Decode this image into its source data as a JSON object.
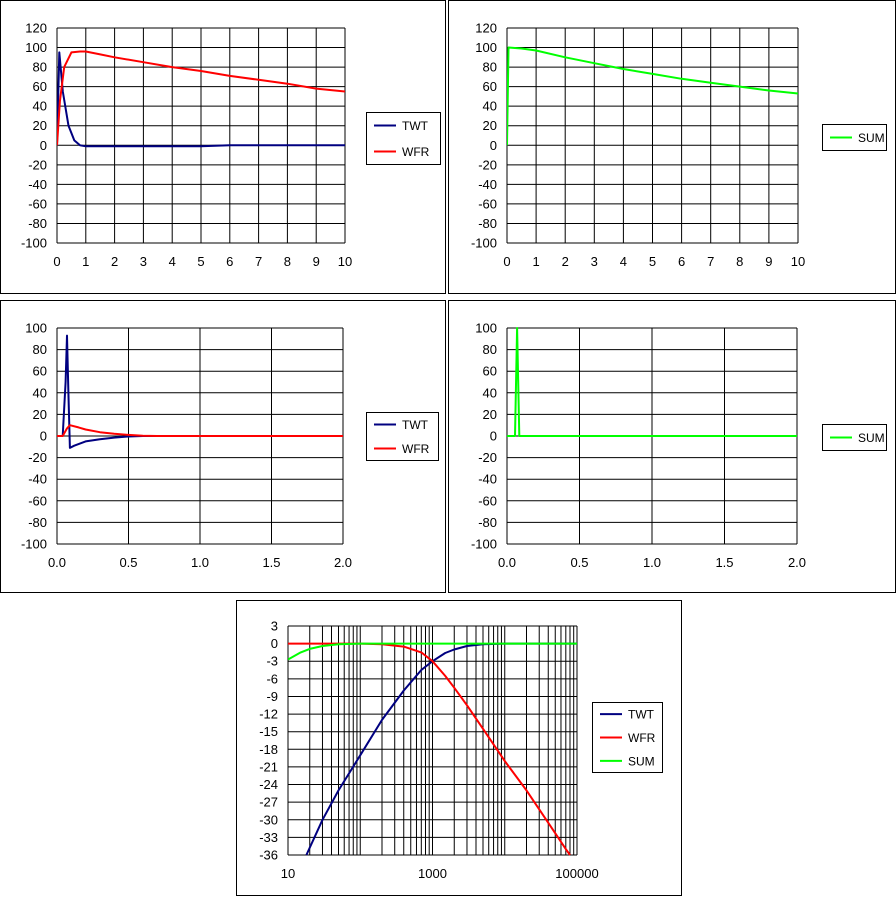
{
  "chart_data": [
    {
      "id": "c1",
      "type": "line",
      "title": "",
      "xlabel": "",
      "ylabel": "",
      "xlim": [
        0,
        10
      ],
      "ylim": [
        -100,
        120
      ],
      "x_ticks": [
        0,
        1,
        2,
        3,
        4,
        5,
        6,
        7,
        8,
        9,
        10
      ],
      "x_tick_labels": [
        "0",
        "1",
        "2",
        "3",
        "4",
        "5",
        "6",
        "7",
        "8",
        "9",
        "10"
      ],
      "y_ticks": [
        -100,
        -80,
        -60,
        -40,
        -20,
        0,
        20,
        40,
        60,
        80,
        100,
        120
      ],
      "y_tick_labels": [
        "-100",
        "-80",
        "-60",
        "-40",
        "-20",
        "0",
        "20",
        "40",
        "60",
        "80",
        "100",
        "120"
      ],
      "grid": true,
      "legend": "right",
      "series": [
        {
          "name": "TWT",
          "color": "#000080",
          "points": [
            [
              0,
              0
            ],
            [
              0.08,
              95
            ],
            [
              0.2,
              55
            ],
            [
              0.4,
              20
            ],
            [
              0.6,
              5
            ],
            [
              0.8,
              0
            ],
            [
              1.0,
              -1
            ],
            [
              2.0,
              -1
            ],
            [
              3.0,
              -1
            ],
            [
              4.0,
              -1
            ],
            [
              5.0,
              -1
            ],
            [
              6.0,
              0
            ],
            [
              10,
              0
            ]
          ]
        },
        {
          "name": "WFR",
          "color": "#ff0000",
          "points": [
            [
              0,
              0
            ],
            [
              0.1,
              45
            ],
            [
              0.25,
              80
            ],
            [
              0.5,
              95
            ],
            [
              0.8,
              96
            ],
            [
              1.0,
              96
            ],
            [
              1.5,
              93
            ],
            [
              2,
              90
            ],
            [
              3,
              85
            ],
            [
              4,
              80
            ],
            [
              5,
              76
            ],
            [
              6,
              71
            ],
            [
              7,
              67
            ],
            [
              8,
              63
            ],
            [
              9,
              58
            ],
            [
              10,
              55
            ]
          ]
        }
      ]
    },
    {
      "id": "c2",
      "type": "line",
      "title": "",
      "xlabel": "",
      "ylabel": "",
      "xlim": [
        0,
        10
      ],
      "ylim": [
        -100,
        120
      ],
      "x_ticks": [
        0,
        1,
        2,
        3,
        4,
        5,
        6,
        7,
        8,
        9,
        10
      ],
      "x_tick_labels": [
        "0",
        "1",
        "2",
        "3",
        "4",
        "5",
        "6",
        "7",
        "8",
        "9",
        "10"
      ],
      "y_ticks": [
        -100,
        -80,
        -60,
        -40,
        -20,
        0,
        20,
        40,
        60,
        80,
        100,
        120
      ],
      "y_tick_labels": [
        "-100",
        "-80",
        "-60",
        "-40",
        "-20",
        "0",
        "20",
        "40",
        "60",
        "80",
        "100",
        "120"
      ],
      "grid": true,
      "legend": "right",
      "series": [
        {
          "name": "SUM",
          "color": "#00ff00",
          "points": [
            [
              0,
              0
            ],
            [
              0.05,
              100
            ],
            [
              0.5,
              99
            ],
            [
              1,
              97
            ],
            [
              2,
              90
            ],
            [
              3,
              84
            ],
            [
              4,
              78
            ],
            [
              5,
              73
            ],
            [
              6,
              68
            ],
            [
              7,
              64
            ],
            [
              8,
              60
            ],
            [
              9,
              56
            ],
            [
              10,
              53
            ]
          ]
        }
      ]
    },
    {
      "id": "c3",
      "type": "line",
      "title": "",
      "xlabel": "",
      "ylabel": "",
      "xlim": [
        0,
        2
      ],
      "ylim": [
        -100,
        100
      ],
      "x_ticks": [
        0,
        0.5,
        1.0,
        1.5,
        2.0
      ],
      "x_tick_labels": [
        "0.0",
        "0.5",
        "1.0",
        "1.5",
        "2.0"
      ],
      "y_ticks": [
        -100,
        -80,
        -60,
        -40,
        -20,
        0,
        20,
        40,
        60,
        80,
        100
      ],
      "y_tick_labels": [
        "-100",
        "-80",
        "-60",
        "-40",
        "-20",
        "0",
        "20",
        "40",
        "60",
        "80",
        "100"
      ],
      "grid": true,
      "legend": "right",
      "series": [
        {
          "name": "TWT",
          "color": "#000080",
          "points": [
            [
              0,
              0
            ],
            [
              0.04,
              0
            ],
            [
              0.06,
              50
            ],
            [
              0.07,
              93
            ],
            [
              0.08,
              40
            ],
            [
              0.09,
              -11
            ],
            [
              0.12,
              -9
            ],
            [
              0.2,
              -5
            ],
            [
              0.3,
              -3
            ],
            [
              0.4,
              -1.5
            ],
            [
              0.5,
              -0.5
            ],
            [
              0.6,
              0
            ],
            [
              2.0,
              0
            ]
          ]
        },
        {
          "name": "WFR",
          "color": "#ff0000",
          "points": [
            [
              0,
              0
            ],
            [
              0.04,
              0
            ],
            [
              0.07,
              7
            ],
            [
              0.09,
              10
            ],
            [
              0.15,
              8
            ],
            [
              0.2,
              6
            ],
            [
              0.3,
              3.5
            ],
            [
              0.4,
              2
            ],
            [
              0.5,
              1
            ],
            [
              0.6,
              0.3
            ],
            [
              0.7,
              0
            ],
            [
              2.0,
              0
            ]
          ]
        }
      ]
    },
    {
      "id": "c4",
      "type": "line",
      "title": "",
      "xlabel": "",
      "ylabel": "",
      "xlim": [
        0,
        2
      ],
      "ylim": [
        -100,
        100
      ],
      "x_ticks": [
        0,
        0.5,
        1.0,
        1.5,
        2.0
      ],
      "x_tick_labels": [
        "0.0",
        "0.5",
        "1.0",
        "1.5",
        "2.0"
      ],
      "y_ticks": [
        -100,
        -80,
        -60,
        -40,
        -20,
        0,
        20,
        40,
        60,
        80,
        100
      ],
      "y_tick_labels": [
        "-100",
        "-80",
        "-60",
        "-40",
        "-20",
        "0",
        "20",
        "40",
        "60",
        "80",
        "100"
      ],
      "grid": true,
      "legend": "right",
      "series": [
        {
          "name": "SUM",
          "color": "#00ff00",
          "points": [
            [
              0,
              0
            ],
            [
              0.055,
              0
            ],
            [
              0.07,
              100
            ],
            [
              0.085,
              0
            ],
            [
              2.0,
              0
            ]
          ]
        }
      ]
    },
    {
      "id": "c5",
      "type": "line",
      "title": "",
      "xlabel": "",
      "ylabel": "",
      "x_scale": "log",
      "xlim": [
        10,
        100000
      ],
      "ylim": [
        -36,
        3
      ],
      "x_ticks": [
        10,
        1000,
        100000
      ],
      "x_tick_labels": [
        "10",
        "1000",
        "100000"
      ],
      "y_ticks": [
        -36,
        -33,
        -30,
        -27,
        -24,
        -21,
        -18,
        -15,
        -12,
        -9,
        -6,
        -3,
        0,
        3
      ],
      "y_tick_labels": [
        "-36",
        "-33",
        "-30",
        "-27",
        "-24",
        "-21",
        "-18",
        "-15",
        "-12",
        "-9",
        "-6",
        "-3",
        "0",
        "3"
      ],
      "grid": true,
      "legend": "right",
      "series": [
        {
          "name": "TWT",
          "color": "#000080",
          "points": [
            [
              18,
              -36
            ],
            [
              30,
              -30
            ],
            [
              50,
              -25
            ],
            [
              100,
              -19
            ],
            [
              200,
              -13
            ],
            [
              400,
              -8
            ],
            [
              700,
              -4.5
            ],
            [
              1000,
              -3
            ],
            [
              1500,
              -1.6
            ],
            [
              2000,
              -1
            ],
            [
              3000,
              -0.4
            ],
            [
              5000,
              -0.1
            ],
            [
              10000,
              0
            ],
            [
              100000,
              0
            ]
          ]
        },
        {
          "name": "WFR",
          "color": "#ff0000",
          "points": [
            [
              10,
              0
            ],
            [
              100,
              0
            ],
            [
              200,
              -0.1
            ],
            [
              400,
              -0.5
            ],
            [
              700,
              -1.5
            ],
            [
              1000,
              -3
            ],
            [
              1500,
              -5.5
            ],
            [
              2000,
              -7.5
            ],
            [
              3000,
              -10.5
            ],
            [
              5000,
              -14.5
            ],
            [
              10000,
              -20
            ],
            [
              20000,
              -25
            ],
            [
              40000,
              -30.5
            ],
            [
              70000,
              -35
            ],
            [
              80000,
              -36
            ]
          ]
        },
        {
          "name": "SUM",
          "color": "#00ff00",
          "points": [
            [
              10,
              -2.7
            ],
            [
              15,
              -1.5
            ],
            [
              20,
              -0.9
            ],
            [
              30,
              -0.4
            ],
            [
              50,
              -0.1
            ],
            [
              100,
              0
            ],
            [
              1000,
              0
            ],
            [
              10000,
              0
            ],
            [
              100000,
              0
            ]
          ]
        }
      ]
    }
  ]
}
